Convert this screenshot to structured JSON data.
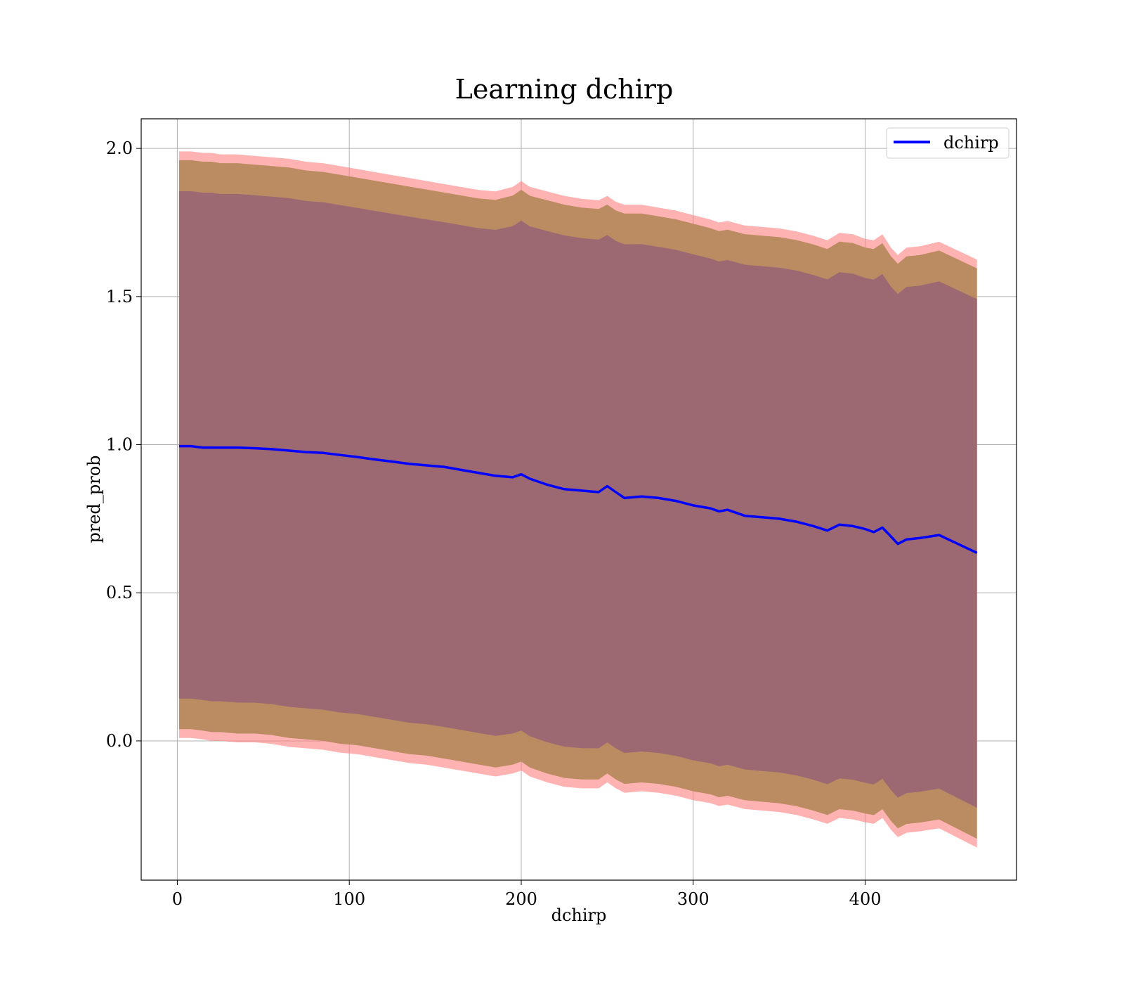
{
  "chart_data": {
    "type": "line",
    "title": "Learning dchirp",
    "xlabel": "dchirp",
    "ylabel": "pred_prob",
    "xlim": [
      -21,
      488
    ],
    "ylim": [
      -0.47,
      2.1
    ],
    "xticks": [
      0,
      100,
      200,
      300,
      400
    ],
    "yticks": [
      0.0,
      0.5,
      1.0,
      1.5,
      2.0
    ],
    "xtick_labels": [
      "0",
      "100",
      "200",
      "300",
      "400"
    ],
    "ytick_labels": [
      "0.0",
      "0.5",
      "1.0",
      "1.5",
      "2.0"
    ],
    "grid": true,
    "legend": {
      "position": "top-right",
      "entries": [
        "dchirp"
      ]
    },
    "colors": {
      "line": "#0000ff",
      "band_outer": "#ff7f7f",
      "band_middle": "#b78a5e",
      "band_inner": "#9a6773"
    },
    "series": [
      {
        "name": "dchirp",
        "x": [
          1,
          8,
          15,
          20,
          25,
          35,
          45,
          55,
          65,
          75,
          85,
          95,
          105,
          115,
          125,
          135,
          145,
          155,
          165,
          175,
          185,
          195,
          200,
          205,
          215,
          225,
          235,
          245,
          250,
          255,
          260,
          270,
          280,
          290,
          300,
          310,
          315,
          320,
          330,
          340,
          350,
          360,
          370,
          378,
          385,
          393,
          400,
          405,
          410,
          415,
          419,
          424,
          432,
          443,
          465
        ],
        "values": [
          0.995,
          0.995,
          0.99,
          0.99,
          0.99,
          0.99,
          0.988,
          0.985,
          0.98,
          0.975,
          0.972,
          0.965,
          0.958,
          0.95,
          0.943,
          0.935,
          0.93,
          0.925,
          0.915,
          0.905,
          0.895,
          0.89,
          0.9,
          0.885,
          0.865,
          0.85,
          0.845,
          0.84,
          0.86,
          0.84,
          0.82,
          0.825,
          0.82,
          0.81,
          0.795,
          0.785,
          0.775,
          0.78,
          0.76,
          0.755,
          0.75,
          0.74,
          0.725,
          0.71,
          0.73,
          0.725,
          0.715,
          0.705,
          0.72,
          0.69,
          0.665,
          0.68,
          0.685,
          0.695,
          0.635
        ],
        "outer_upper": [
          1.99,
          1.99,
          1.985,
          1.985,
          1.98,
          1.98,
          1.975,
          1.97,
          1.965,
          1.955,
          1.95,
          1.94,
          1.93,
          1.92,
          1.91,
          1.9,
          1.89,
          1.88,
          1.87,
          1.86,
          1.855,
          1.87,
          1.89,
          1.87,
          1.855,
          1.84,
          1.83,
          1.825,
          1.84,
          1.82,
          1.81,
          1.81,
          1.8,
          1.79,
          1.775,
          1.76,
          1.75,
          1.755,
          1.74,
          1.735,
          1.73,
          1.72,
          1.705,
          1.69,
          1.715,
          1.71,
          1.695,
          1.69,
          1.71,
          1.665,
          1.64,
          1.665,
          1.67,
          1.685,
          1.625
        ],
        "outer_lower": [
          0.01,
          0.01,
          0.005,
          0.0,
          0.0,
          -0.005,
          -0.005,
          -0.01,
          -0.02,
          -0.025,
          -0.03,
          -0.04,
          -0.045,
          -0.055,
          -0.065,
          -0.075,
          -0.08,
          -0.09,
          -0.1,
          -0.11,
          -0.12,
          -0.11,
          -0.1,
          -0.12,
          -0.14,
          -0.155,
          -0.16,
          -0.16,
          -0.14,
          -0.16,
          -0.175,
          -0.17,
          -0.175,
          -0.185,
          -0.2,
          -0.21,
          -0.22,
          -0.215,
          -0.23,
          -0.235,
          -0.24,
          -0.25,
          -0.265,
          -0.28,
          -0.26,
          -0.265,
          -0.275,
          -0.28,
          -0.26,
          -0.3,
          -0.325,
          -0.31,
          -0.305,
          -0.295,
          -0.36
        ]
      }
    ]
  }
}
